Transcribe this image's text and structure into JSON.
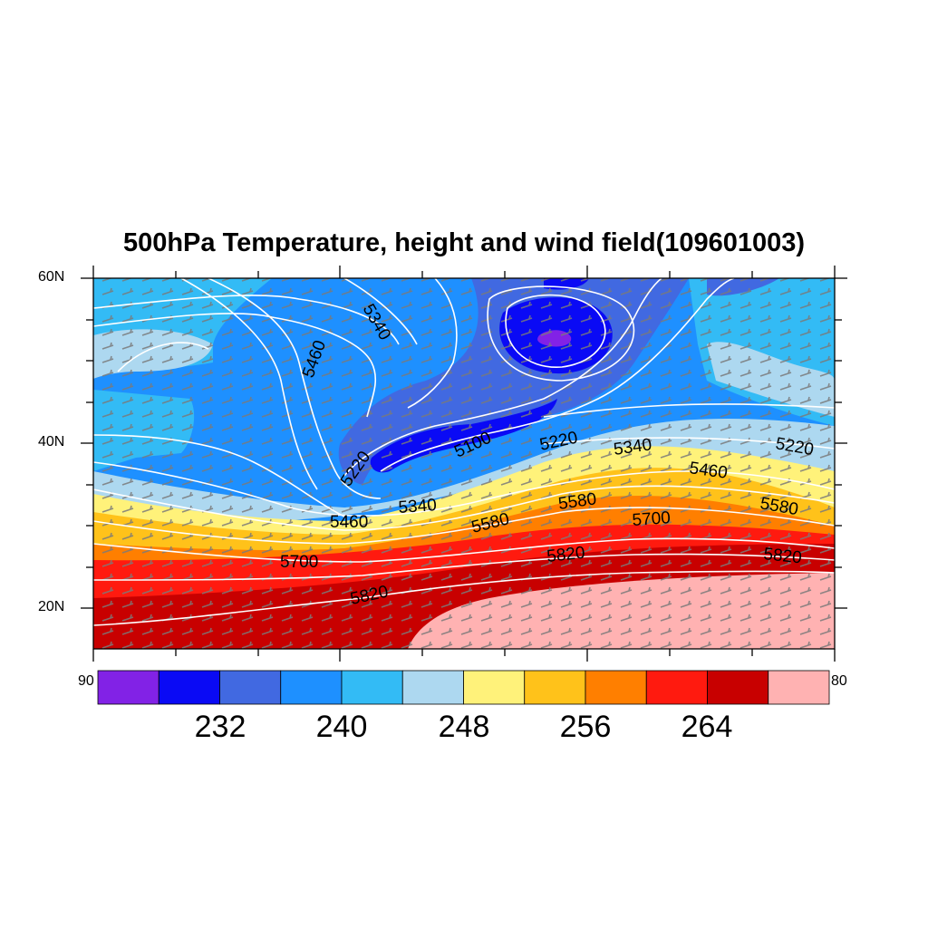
{
  "title": "500hPa Temperature, height and wind field(109601003)",
  "axes": {
    "lat_ticks": [
      "60N",
      "40N",
      "20N"
    ],
    "lat_values": [
      60,
      40,
      20
    ]
  },
  "colorbar": {
    "end_left": "90",
    "end_right": "80",
    "tick_labels": [
      "232",
      "240",
      "248",
      "256",
      "264"
    ],
    "colors": [
      "#8222e6",
      "#0a0af5",
      "#4169e1",
      "#1e90ff",
      "#33bbf5",
      "#add8f0",
      "#fff27a",
      "#ffc21a",
      "#ff7f00",
      "#ff1a0f",
      "#c80000",
      "#ffb2b2"
    ]
  },
  "contours": {
    "line_color": "#ffffff",
    "labels": [
      "5340",
      "5460",
      "5220",
      "5100",
      "5220",
      "5340",
      "5220",
      "5460",
      "5340",
      "5460",
      "5580",
      "5580",
      "5700",
      "5580",
      "5700",
      "5820",
      "5820",
      "5820"
    ]
  },
  "wind_barb_color": "#777777"
}
